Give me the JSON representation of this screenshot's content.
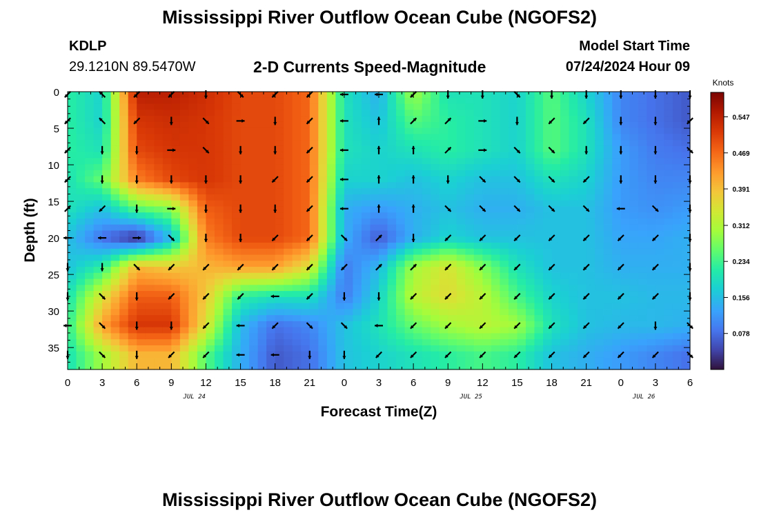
{
  "header": {
    "title": "Mississippi River Outflow Ocean Cube (NGOFS2)",
    "station": "KDLP",
    "coords": "29.1210N  89.5470W",
    "subtitle": "2-D Currents Speed-Magnitude",
    "model_start_label": "Model Start Time",
    "model_start_value": "07/24/2024 Hour 09",
    "footer_title": "Mississippi River Outflow Ocean Cube (NGOFS2)"
  },
  "chart_data": {
    "type": "heatmap",
    "xlabel": "Forecast Time(Z)",
    "ylabel": "Depth (ft)",
    "x_tick_labels": [
      "0",
      "3",
      "6",
      "9",
      "12",
      "15",
      "18",
      "21",
      "0",
      "3",
      "6",
      "9",
      "12",
      "15",
      "18",
      "21",
      "0",
      "3",
      "6"
    ],
    "day_labels": [
      "JUL 24",
      "JUL 25",
      "JUL 26"
    ],
    "day_label_positions_hours": [
      11,
      35,
      50
    ],
    "xlim_hours": [
      0,
      54
    ],
    "y_ticks": [
      0,
      5,
      10,
      15,
      20,
      25,
      30,
      35
    ],
    "ylim": [
      0,
      38
    ],
    "colorbar": {
      "label": "Knots",
      "ticks": [
        "0.547",
        "0.469",
        "0.391",
        "0.312",
        "0.234",
        "0.156",
        "0.078"
      ],
      "tick_values": [
        0.547,
        0.469,
        0.391,
        0.312,
        0.234,
        0.156,
        0.078
      ],
      "range": [
        0,
        0.6
      ]
    },
    "speed_field": {
      "x_hours": [
        0,
        3,
        6,
        9,
        12,
        15,
        18,
        21,
        24,
        27,
        30,
        33,
        36,
        39,
        42,
        45,
        48,
        51,
        54
      ],
      "depth_ft": [
        0,
        4,
        8,
        12,
        16,
        20,
        24,
        28,
        32,
        36
      ],
      "values_knots": [
        [
          0.22,
          0.18,
          0.55,
          0.55,
          0.53,
          0.5,
          0.5,
          0.47,
          0.2,
          0.14,
          0.3,
          0.2,
          0.2,
          0.18,
          0.25,
          0.18,
          0.1,
          0.08,
          0.06
        ],
        [
          0.22,
          0.18,
          0.52,
          0.53,
          0.52,
          0.5,
          0.5,
          0.47,
          0.2,
          0.16,
          0.25,
          0.22,
          0.2,
          0.18,
          0.25,
          0.2,
          0.1,
          0.08,
          0.06
        ],
        [
          0.22,
          0.2,
          0.5,
          0.52,
          0.52,
          0.5,
          0.5,
          0.47,
          0.2,
          0.18,
          0.2,
          0.22,
          0.2,
          0.18,
          0.25,
          0.2,
          0.12,
          0.09,
          0.08
        ],
        [
          0.2,
          0.26,
          0.45,
          0.5,
          0.52,
          0.5,
          0.5,
          0.47,
          0.18,
          0.18,
          0.16,
          0.18,
          0.16,
          0.16,
          0.2,
          0.18,
          0.12,
          0.1,
          0.1
        ],
        [
          0.2,
          0.16,
          0.25,
          0.28,
          0.48,
          0.5,
          0.5,
          0.47,
          0.14,
          0.12,
          0.14,
          0.16,
          0.14,
          0.14,
          0.16,
          0.16,
          0.12,
          0.11,
          0.12
        ],
        [
          0.16,
          0.08,
          0.02,
          0.15,
          0.45,
          0.5,
          0.5,
          0.47,
          0.14,
          0.06,
          0.14,
          0.18,
          0.16,
          0.16,
          0.16,
          0.16,
          0.13,
          0.13,
          0.14
        ],
        [
          0.16,
          0.22,
          0.4,
          0.38,
          0.4,
          0.42,
          0.42,
          0.35,
          0.09,
          0.15,
          0.3,
          0.35,
          0.28,
          0.2,
          0.16,
          0.16,
          0.14,
          0.14,
          0.14
        ],
        [
          0.2,
          0.35,
          0.48,
          0.48,
          0.38,
          0.22,
          0.2,
          0.2,
          0.09,
          0.18,
          0.32,
          0.36,
          0.32,
          0.24,
          0.18,
          0.16,
          0.16,
          0.15,
          0.15
        ],
        [
          0.22,
          0.42,
          0.52,
          0.52,
          0.35,
          0.15,
          0.08,
          0.1,
          0.16,
          0.2,
          0.26,
          0.3,
          0.32,
          0.3,
          0.2,
          0.16,
          0.15,
          0.15,
          0.14
        ],
        [
          0.2,
          0.3,
          0.4,
          0.4,
          0.25,
          0.14,
          0.06,
          0.08,
          0.16,
          0.18,
          0.2,
          0.22,
          0.24,
          0.22,
          0.16,
          0.14,
          0.12,
          0.1,
          0.08
        ]
      ]
    },
    "vector_field": {
      "x_hours": [
        0,
        3,
        6,
        9,
        12,
        15,
        18,
        21,
        24,
        27,
        30,
        33,
        36,
        39,
        42,
        45,
        48,
        51,
        54
      ],
      "depth_ft": [
        0,
        4,
        8,
        12,
        16,
        20,
        24,
        28,
        32,
        36
      ],
      "direction_deg": [
        [
          135,
          225,
          135,
          135,
          90,
          45,
          135,
          135,
          180,
          180,
          135,
          90,
          90,
          45,
          90,
          90,
          90,
          90,
          90
        ],
        [
          135,
          225,
          135,
          90,
          45,
          0,
          90,
          135,
          180,
          270,
          315,
          315,
          0,
          90,
          135,
          135,
          90,
          90,
          135
        ],
        [
          135,
          90,
          90,
          0,
          45,
          90,
          90,
          135,
          180,
          270,
          270,
          315,
          0,
          45,
          45,
          90,
          90,
          90,
          45
        ],
        [
          135,
          90,
          90,
          90,
          90,
          90,
          135,
          135,
          180,
          270,
          270,
          90,
          45,
          45,
          45,
          135,
          90,
          90,
          90
        ],
        [
          315,
          135,
          90,
          0,
          90,
          90,
          90,
          135,
          180,
          270,
          270,
          45,
          45,
          45,
          45,
          45,
          180,
          45,
          90
        ],
        [
          180,
          180,
          0,
          45,
          90,
          90,
          135,
          135,
          45,
          315,
          90,
          135,
          135,
          135,
          135,
          135,
          135,
          135,
          90
        ],
        [
          90,
          90,
          45,
          135,
          135,
          135,
          135,
          135,
          135,
          315,
          315,
          135,
          135,
          135,
          135,
          135,
          135,
          135,
          90
        ],
        [
          90,
          45,
          90,
          135,
          135,
          135,
          180,
          135,
          90,
          90,
          135,
          135,
          135,
          135,
          135,
          135,
          135,
          135,
          90
        ],
        [
          180,
          45,
          90,
          90,
          135,
          180,
          135,
          45,
          45,
          180,
          135,
          135,
          135,
          135,
          135,
          135,
          135,
          90,
          45
        ],
        [
          90,
          45,
          90,
          135,
          135,
          180,
          180,
          90,
          90,
          135,
          135,
          135,
          135,
          135,
          135,
          135,
          135,
          135,
          45
        ]
      ]
    }
  }
}
